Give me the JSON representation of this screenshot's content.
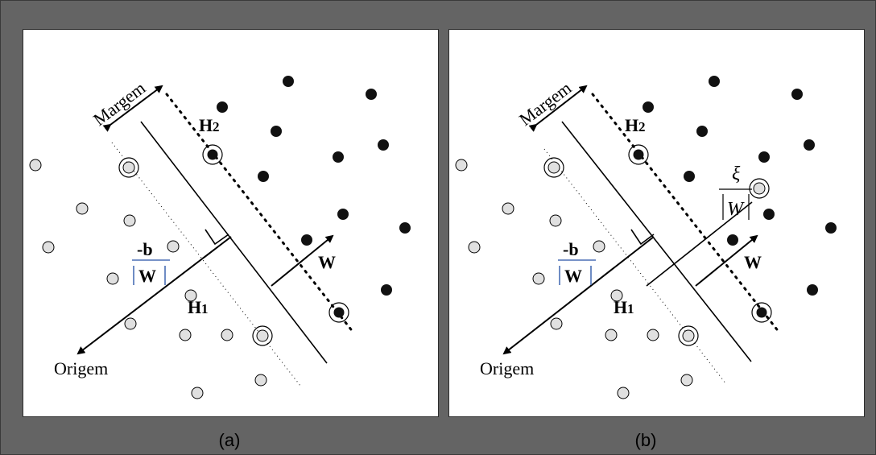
{
  "panels": [
    {
      "id": "a",
      "caption": "(a)",
      "labels": {
        "margin": "Margem",
        "h2": "H",
        "h2_sub": "2",
        "h1": "H",
        "h1_sub": "1",
        "w": "W",
        "origin": "Origem",
        "bias_num": "-b",
        "bias_den": "W"
      }
    },
    {
      "id": "b",
      "caption": "(b)",
      "labels": {
        "margin": "Margem",
        "h2": "H",
        "h2_sub": "2",
        "h1": "H",
        "h1_sub": "1",
        "w": "W",
        "origin": "Origem",
        "bias_num": "-b",
        "bias_den": "W",
        "slack_num": "ξ",
        "slack_den": "W"
      }
    }
  ],
  "colors": {
    "background": "#646464",
    "class_positive": "#111111",
    "class_negative": "#e0e0e0",
    "norm_bars": "#4a6fb5"
  }
}
